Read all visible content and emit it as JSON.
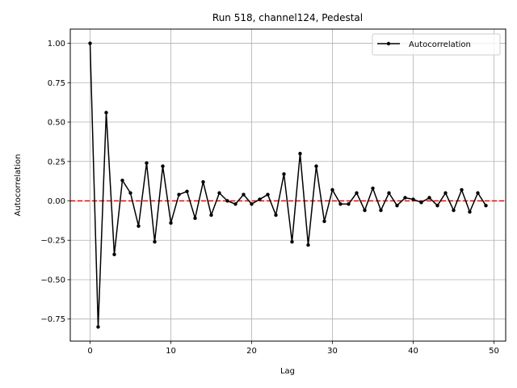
{
  "chart_data": {
    "type": "line",
    "title": "Run 518, channel124, Pedestal",
    "xlabel": "Lag",
    "ylabel": "Autocorrelation",
    "xlim": [
      -2.45,
      51.45
    ],
    "ylim": [
      -0.89,
      1.09
    ],
    "xticks": [
      0,
      10,
      20,
      30,
      40,
      50
    ],
    "yticks": [
      -0.75,
      -0.5,
      -0.25,
      0.0,
      0.25,
      0.5,
      0.75,
      1.0
    ],
    "xtick_labels": [
      "0",
      "10",
      "20",
      "30",
      "40",
      "50"
    ],
    "ytick_labels": [
      "−0.75",
      "−0.50",
      "−0.25",
      "0.00",
      "0.25",
      "0.50",
      "0.75",
      "1.00"
    ],
    "grid": true,
    "legend_position": "top-right",
    "series": [
      {
        "name": "Autocorrelation",
        "color": "#000000",
        "marker": "circle",
        "x": [
          0,
          1,
          2,
          3,
          4,
          5,
          6,
          7,
          8,
          9,
          10,
          11,
          12,
          13,
          14,
          15,
          16,
          17,
          18,
          19,
          20,
          21,
          22,
          23,
          24,
          25,
          26,
          27,
          28,
          29,
          30,
          31,
          32,
          33,
          34,
          35,
          36,
          37,
          38,
          39,
          40,
          41,
          42,
          43,
          44,
          45,
          46,
          47,
          48,
          49
        ],
        "values": [
          1.0,
          -0.8,
          0.56,
          -0.34,
          0.13,
          0.05,
          -0.16,
          0.24,
          -0.26,
          0.22,
          -0.14,
          0.04,
          0.06,
          -0.11,
          0.12,
          -0.09,
          0.05,
          0.0,
          -0.02,
          0.04,
          -0.02,
          0.01,
          0.04,
          -0.09,
          0.17,
          -0.26,
          0.3,
          -0.28,
          0.22,
          -0.13,
          0.07,
          -0.02,
          -0.02,
          0.05,
          -0.06,
          0.08,
          -0.06,
          0.05,
          -0.03,
          0.02,
          0.01,
          -0.01,
          0.02,
          -0.03,
          0.05,
          -0.06,
          0.07,
          -0.07,
          0.05,
          -0.03
        ]
      }
    ],
    "reference_line": {
      "y": 0.0,
      "color": "#ff0000",
      "style": "dashed"
    }
  }
}
